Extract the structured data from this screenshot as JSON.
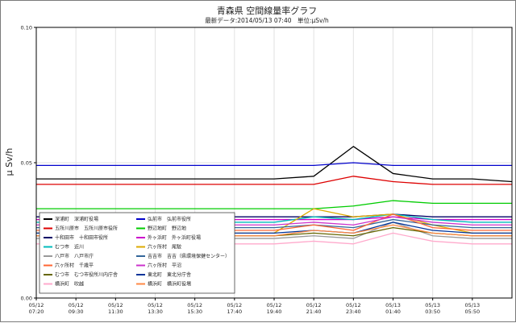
{
  "chart_data": {
    "type": "line",
    "title": "青森県 空間線量率グラフ",
    "subtitle": "最新データ:2014/05/13 07:40　単位:μSv/h",
    "xlabel": "",
    "ylabel": "μ Sv/h",
    "ylim": [
      0,
      0.1
    ],
    "yticks": [
      "0.00",
      "0.05",
      "0.10"
    ],
    "grid": true,
    "legend_placement": "bottom-left",
    "x_tick_labels": [
      [
        "05/12",
        "07:20"
      ],
      [
        "05/12",
        "09:30"
      ],
      [
        "05/12",
        "11:30"
      ],
      [
        "05/12",
        "13:30"
      ],
      [
        "05/12",
        "15:30"
      ],
      [
        "05/12",
        "17:40"
      ],
      [
        "05/12",
        "19:40"
      ],
      [
        "05/12",
        "21:40"
      ],
      [
        "05/12",
        "23:40"
      ],
      [
        "05/13",
        "01:40"
      ],
      [
        "05/13",
        "03:50"
      ],
      [
        "05/13",
        "05:50"
      ]
    ],
    "x": [
      0,
      1,
      2,
      3,
      4,
      5,
      6,
      7,
      8,
      9,
      10,
      11,
      12
    ],
    "series": [
      {
        "name": "深浦町　深浦町役場",
        "color": "#000000",
        "values": [
          0.044,
          0.044,
          0.044,
          0.044,
          0.044,
          0.044,
          0.044,
          0.045,
          0.056,
          0.046,
          0.044,
          0.044,
          0.043
        ]
      },
      {
        "name": "弘前市　弘前市役所",
        "color": "#0000cc",
        "values": [
          0.049,
          0.049,
          0.049,
          0.049,
          0.049,
          0.049,
          0.049,
          0.049,
          0.05,
          0.049,
          0.049,
          0.049,
          0.049
        ]
      },
      {
        "name": "五所川原市　五所川原市役所",
        "color": "#dd0000",
        "values": [
          0.042,
          0.042,
          0.042,
          0.042,
          0.042,
          0.042,
          0.042,
          0.042,
          0.045,
          0.043,
          0.042,
          0.042,
          0.042
        ]
      },
      {
        "name": "野辺地町　野辺地",
        "color": "#00cc00",
        "values": [
          0.033,
          0.033,
          0.033,
          0.033,
          0.033,
          0.033,
          0.033,
          0.033,
          0.034,
          0.036,
          0.035,
          0.035,
          0.035
        ]
      },
      {
        "name": "十和田市　十和田市役所",
        "color": "#000066",
        "values": [
          0.03,
          0.03,
          0.03,
          0.03,
          0.03,
          0.03,
          0.03,
          0.03,
          0.03,
          0.031,
          0.03,
          0.03,
          0.03
        ]
      },
      {
        "name": "外ヶ浜町　外ヶ浜町役場",
        "color": "#cc00cc",
        "values": [
          0.029,
          0.029,
          0.029,
          0.029,
          0.029,
          0.029,
          0.029,
          0.029,
          0.029,
          0.03,
          0.029,
          0.029,
          0.029
        ]
      },
      {
        "name": "むつ市　近川",
        "color": "#00bbbb",
        "values": [
          0.028,
          0.028,
          0.028,
          0.028,
          0.028,
          0.028,
          0.028,
          0.03,
          0.029,
          0.031,
          0.029,
          0.028,
          0.028
        ]
      },
      {
        "name": "六ヶ所村　尾駮",
        "color": "#ddaa00",
        "values": [
          0.024,
          0.024,
          0.024,
          0.024,
          0.024,
          0.024,
          0.024,
          0.033,
          0.03,
          0.031,
          0.027,
          0.024,
          0.024
        ]
      },
      {
        "name": "八戸市　八戸市庁",
        "color": "#999999",
        "values": [
          0.022,
          0.022,
          0.022,
          0.022,
          0.022,
          0.022,
          0.022,
          0.023,
          0.022,
          0.028,
          0.023,
          0.022,
          0.022
        ]
      },
      {
        "name": "吉吉市　吉吉（県環境保健センター）",
        "color": "#336699",
        "values": [
          0.026,
          0.026,
          0.026,
          0.026,
          0.026,
          0.026,
          0.026,
          0.027,
          0.026,
          0.029,
          0.027,
          0.026,
          0.026
        ]
      },
      {
        "name": "六ヶ所村　千歳平",
        "color": "#ff6633",
        "values": [
          0.025,
          0.025,
          0.025,
          0.025,
          0.025,
          0.025,
          0.025,
          0.027,
          0.025,
          0.031,
          0.026,
          0.025,
          0.025
        ]
      },
      {
        "name": "六ヶ所村　平沼",
        "color": "#cc33cc",
        "values": [
          0.027,
          0.027,
          0.027,
          0.027,
          0.027,
          0.027,
          0.027,
          0.028,
          0.027,
          0.03,
          0.028,
          0.027,
          0.027
        ]
      },
      {
        "name": "むつ市　むつ市役所川内庁舎",
        "color": "#666600",
        "values": [
          0.023,
          0.023,
          0.023,
          0.023,
          0.023,
          0.023,
          0.023,
          0.024,
          0.023,
          0.026,
          0.024,
          0.023,
          0.023
        ]
      },
      {
        "name": "東北町　東北分庁舎",
        "color": "#003399",
        "values": [
          0.024,
          0.024,
          0.024,
          0.024,
          0.024,
          0.024,
          0.024,
          0.025,
          0.024,
          0.028,
          0.025,
          0.024,
          0.024
        ]
      },
      {
        "name": "横浜町　吹越",
        "color": "#ffaacc",
        "values": [
          0.02,
          0.02,
          0.02,
          0.02,
          0.02,
          0.02,
          0.02,
          0.021,
          0.02,
          0.024,
          0.021,
          0.02,
          0.02
        ]
      },
      {
        "name": "横浜町　横浜町役場",
        "color": "#ff8844",
        "values": [
          0.023,
          0.023,
          0.023,
          0.023,
          0.023,
          0.023,
          0.023,
          0.025,
          0.024,
          0.027,
          0.024,
          0.023,
          0.023
        ]
      }
    ]
  }
}
